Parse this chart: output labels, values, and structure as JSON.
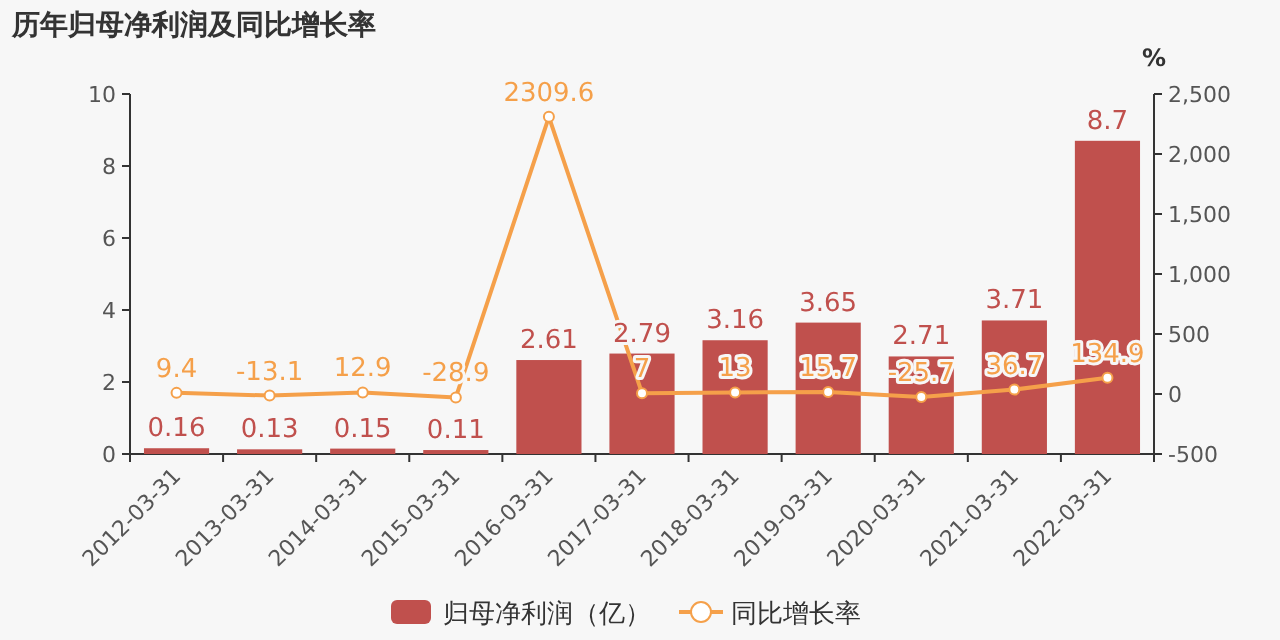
{
  "chart_data": {
    "type": "bar",
    "title": "历年归母净利润及同比增长率",
    "y2label": "%",
    "categories": [
      "2012-03-31",
      "2013-03-31",
      "2014-03-31",
      "2015-03-31",
      "2016-03-31",
      "2017-03-31",
      "2018-03-31",
      "2019-03-31",
      "2020-03-31",
      "2021-03-31",
      "2022-03-31"
    ],
    "series": [
      {
        "name": "归母净利润（亿）",
        "color": "#c0504d",
        "values": [
          0.16,
          0.13,
          0.15,
          0.11,
          2.61,
          2.79,
          3.16,
          3.65,
          2.71,
          3.71,
          8.7
        ]
      },
      {
        "name": "同比增长率",
        "type": "line",
        "axis": "y2",
        "color": "#f5a04a",
        "marker": "circle",
        "values": [
          9.4,
          -13.1,
          12.9,
          -28.9,
          2309.6,
          7,
          13,
          15.7,
          -25.7,
          36.7,
          134.9
        ]
      }
    ],
    "ylim": [
      0,
      10
    ],
    "yticks": [
      0,
      2,
      4,
      6,
      8,
      10
    ],
    "y2lim": [
      -500,
      2500
    ],
    "y2ticks": [
      -500,
      0,
      500,
      {
        "value": 1000,
        "label": "1,000"
      },
      {
        "value": 1500,
        "label": "1,500"
      },
      {
        "value": 2000,
        "label": "2,000"
      },
      {
        "value": 2500,
        "label": "2,500"
      }
    ],
    "data_labels": true,
    "legend": "bottom",
    "grid": false
  }
}
